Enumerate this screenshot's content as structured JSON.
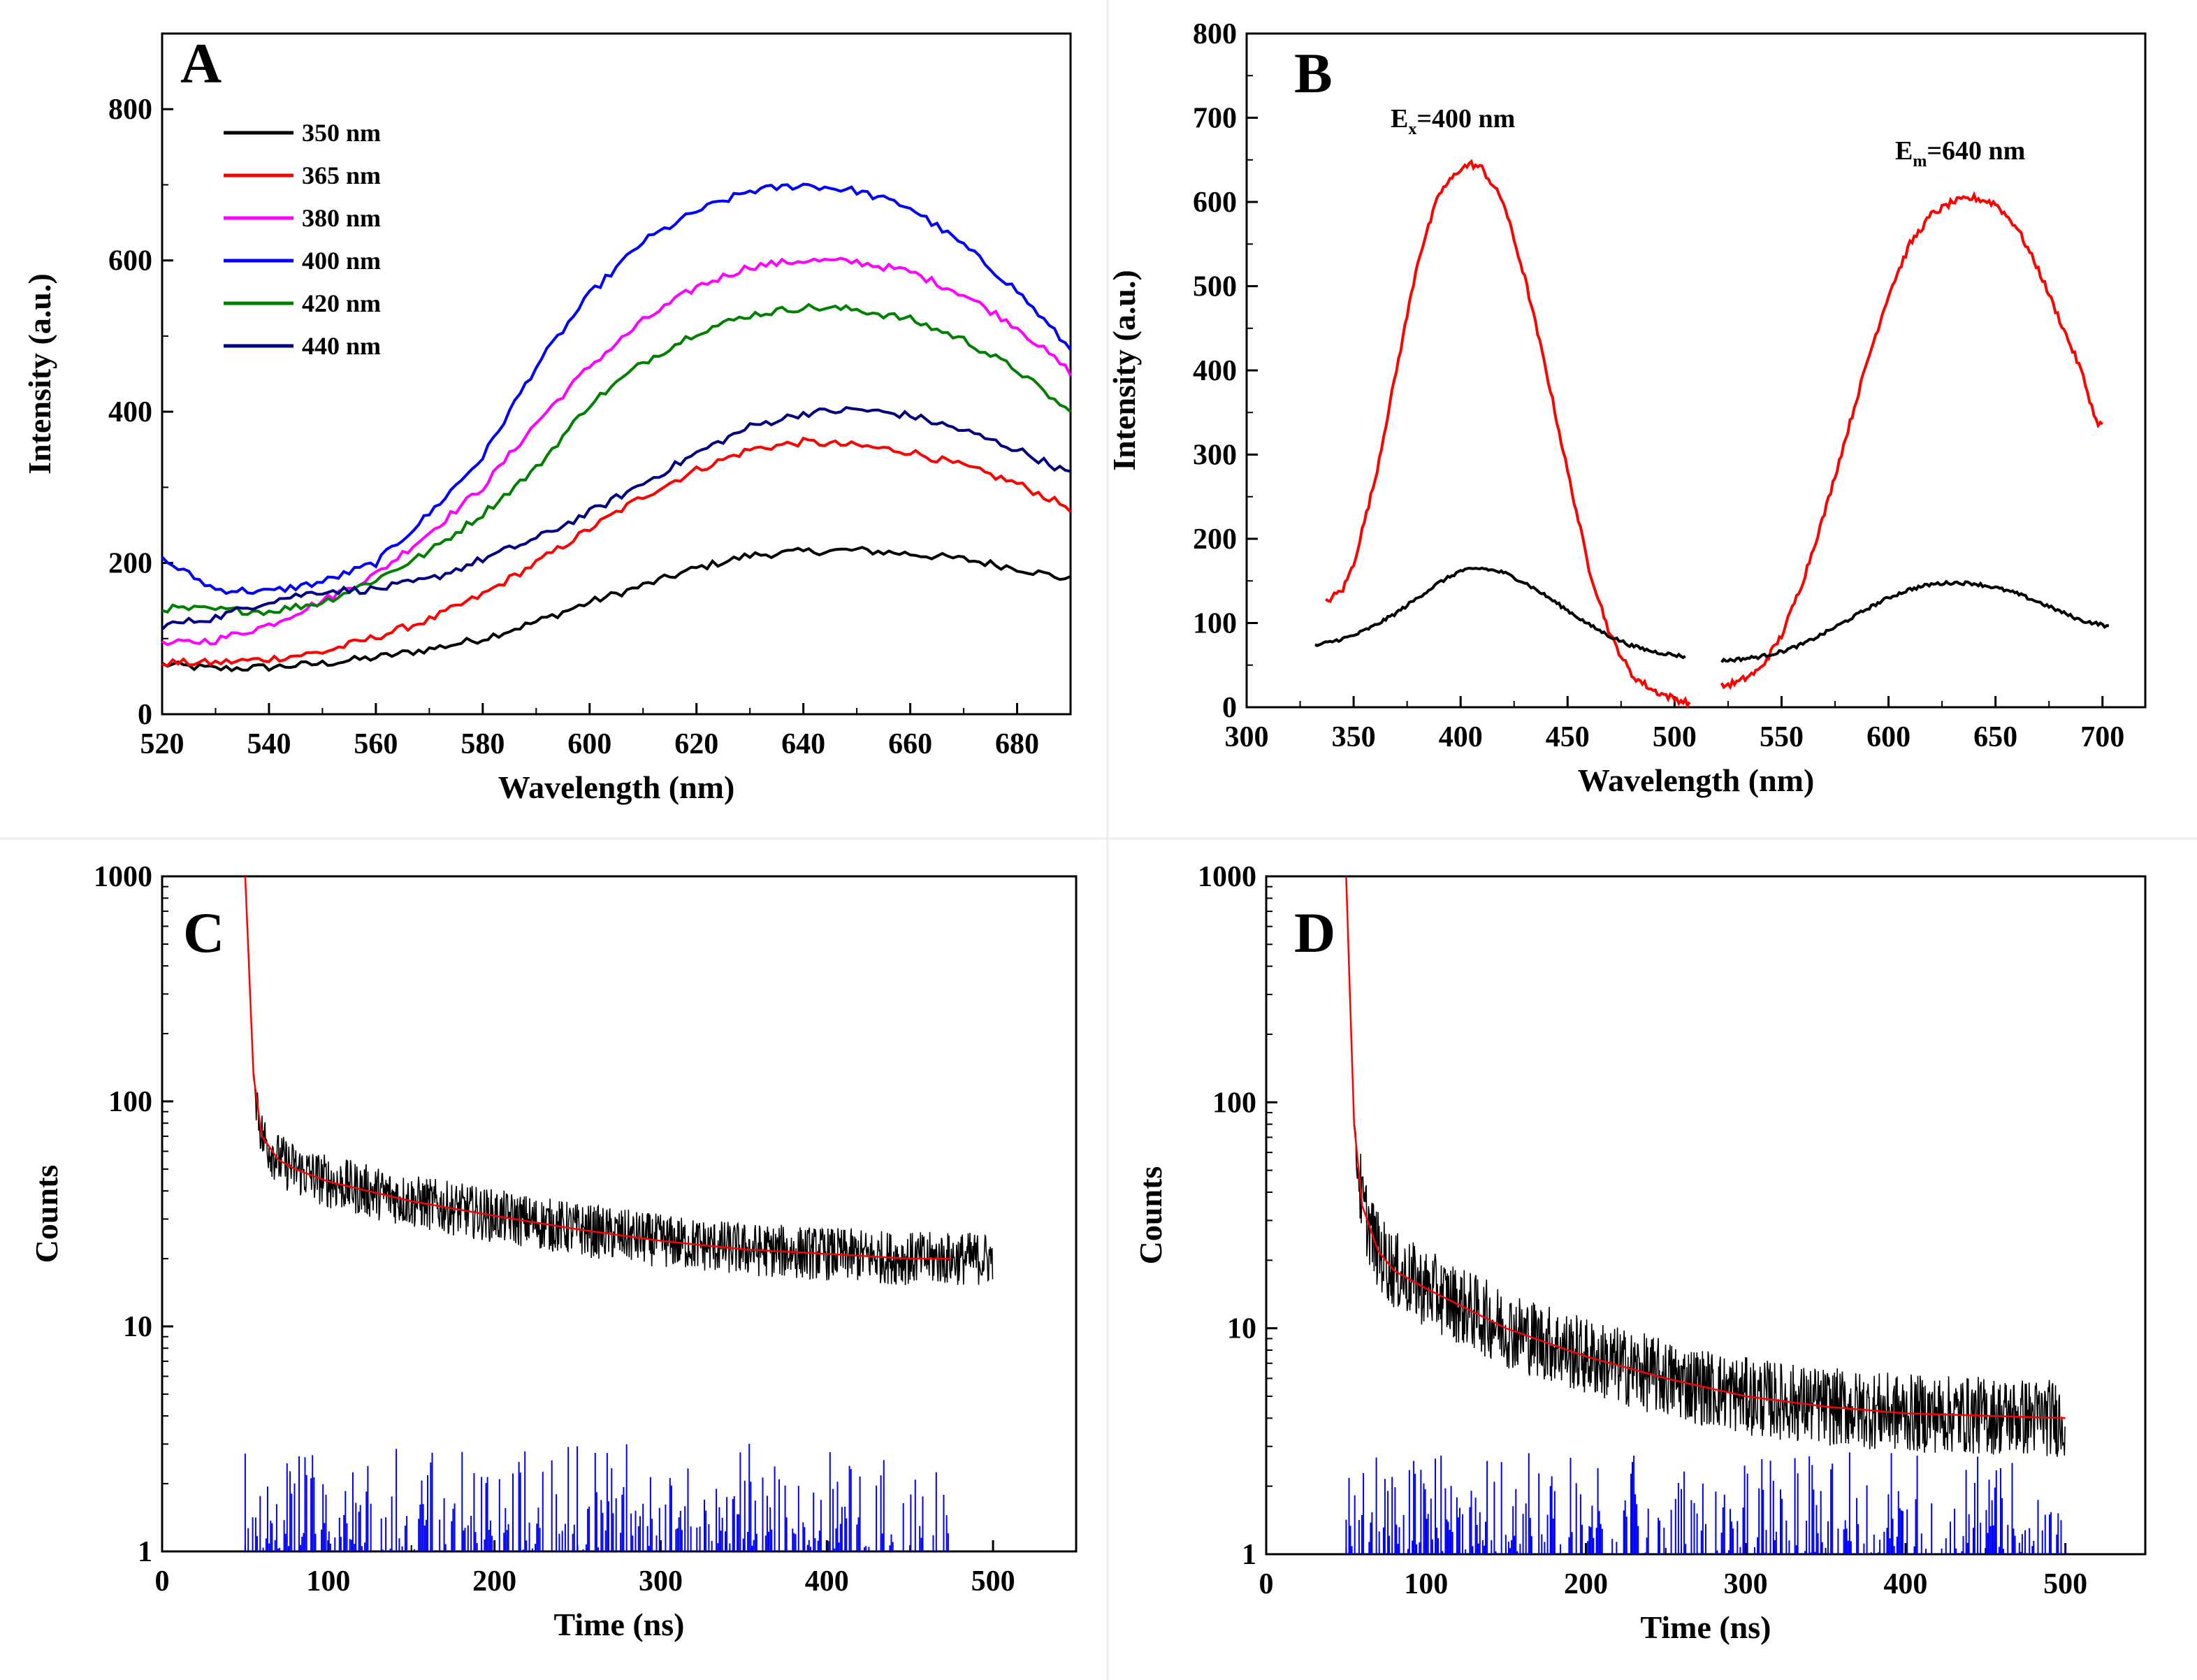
{
  "figure": {
    "colors": {
      "black": "#000000",
      "red": "#ff0000",
      "magenta": "#ff00ff",
      "blue": "#0000ff",
      "green": "#008000",
      "navy": "#000080"
    }
  },
  "chart_data": [
    {
      "panel": "A",
      "type": "line",
      "title": "",
      "xlabel": "Wavelength (nm)",
      "ylabel": "Intensity (a.u.)",
      "xlim": [
        520,
        690
      ],
      "ylim": [
        0,
        900
      ],
      "x_ticks": [
        520,
        540,
        560,
        580,
        600,
        620,
        640,
        660,
        680
      ],
      "y_ticks": [
        0,
        200,
        400,
        600,
        800
      ],
      "legend_position": "top-left",
      "x": [
        520,
        530,
        540,
        550,
        560,
        570,
        580,
        590,
        600,
        610,
        620,
        630,
        640,
        650,
        660,
        670,
        680,
        690
      ],
      "series": [
        {
          "name": "350 nm",
          "color": "#000000",
          "values": [
            66,
            60,
            62,
            67,
            75,
            86,
            100,
            122,
            148,
            170,
            193,
            210,
            215,
            217,
            212,
            205,
            193,
            178
          ]
        },
        {
          "name": "365 nm",
          "color": "#ff0000",
          "values": [
            68,
            68,
            73,
            82,
            102,
            125,
            158,
            200,
            245,
            288,
            323,
            350,
            360,
            355,
            347,
            328,
            305,
            272
          ]
        },
        {
          "name": "380 nm",
          "color": "#ff00ff",
          "values": [
            92,
            98,
            118,
            150,
            185,
            240,
            300,
            385,
            460,
            520,
            565,
            592,
            600,
            598,
            585,
            555,
            512,
            452
          ]
        },
        {
          "name": "400 nm",
          "color": "#0000ff",
          "values": [
            205,
            165,
            162,
            175,
            200,
            265,
            340,
            460,
            555,
            625,
            665,
            692,
            700,
            692,
            670,
            620,
            560,
            482
          ]
        },
        {
          "name": "420 nm",
          "color": "#008000",
          "values": [
            140,
            138,
            136,
            148,
            178,
            215,
            265,
            325,
            410,
            465,
            505,
            528,
            538,
            535,
            522,
            495,
            455,
            398
          ]
        },
        {
          "name": "440 nm",
          "color": "#000080",
          "values": [
            117,
            128,
            150,
            163,
            165,
            178,
            205,
            232,
            267,
            305,
            345,
            380,
            398,
            403,
            395,
            375,
            350,
            318
          ]
        }
      ]
    },
    {
      "panel": "B",
      "type": "line",
      "title": "",
      "xlabel": "Wavelength (nm)",
      "ylabel": "Intensity (a.u.)",
      "xlim": [
        300,
        720
      ],
      "ylim": [
        0,
        800
      ],
      "x_ticks": [
        300,
        350,
        400,
        450,
        500,
        550,
        600,
        650,
        700
      ],
      "y_ticks": [
        0,
        100,
        200,
        300,
        400,
        500,
        600,
        700,
        800
      ],
      "annotations": [
        {
          "base": "E",
          "sub": "x",
          "rest": "=400 nm"
        },
        {
          "base": "E",
          "sub": "m",
          "rest": "=640 nm"
        }
      ],
      "series": [
        {
          "name": "excitation (red)",
          "color": "#ff0000",
          "x": [
            337,
            345,
            350,
            360,
            370,
            380,
            390,
            400,
            405,
            410,
            420,
            430,
            440,
            450,
            460,
            470,
            480,
            490,
            500,
            507
          ],
          "values": [
            125,
            140,
            170,
            270,
            400,
            530,
            610,
            640,
            645,
            640,
            600,
            510,
            400,
            280,
            165,
            85,
            38,
            20,
            10,
            5
          ]
        },
        {
          "name": "emission (red)",
          "color": "#ff0000",
          "x": [
            522,
            530,
            540,
            550,
            560,
            570,
            580,
            590,
            600,
            610,
            620,
            630,
            640,
            650,
            660,
            670,
            680,
            690,
            697,
            700
          ],
          "values": [
            25,
            30,
            45,
            85,
            150,
            230,
            320,
            410,
            490,
            550,
            585,
            600,
            605,
            598,
            570,
            520,
            460,
            400,
            340,
            335
          ]
        },
        {
          "name": "excitation (black)",
          "color": "#000000",
          "x": [
            332,
            340,
            350,
            360,
            370,
            380,
            390,
            400,
            410,
            420,
            430,
            440,
            450,
            460,
            470,
            480,
            490,
            500,
            505
          ],
          "values": [
            73,
            78,
            85,
            97,
            112,
            130,
            148,
            162,
            165,
            160,
            148,
            132,
            115,
            98,
            84,
            73,
            66,
            62,
            60
          ]
        },
        {
          "name": "emission (black)",
          "color": "#000000",
          "x": [
            522,
            530,
            540,
            550,
            560,
            570,
            580,
            590,
            600,
            610,
            620,
            630,
            640,
            650,
            660,
            670,
            680,
            690,
            700,
            703
          ],
          "values": [
            55,
            57,
            60,
            66,
            75,
            88,
            102,
            117,
            130,
            140,
            146,
            148,
            147,
            142,
            135,
            125,
            114,
            103,
            98,
            95
          ]
        }
      ]
    },
    {
      "panel": "C",
      "type": "line",
      "title": "",
      "xlabel": "Time (ns)",
      "ylabel": "Counts",
      "yscale": "log",
      "xlim": [
        0,
        550
      ],
      "ylim": [
        1,
        1000
      ],
      "x_ticks": [
        0,
        100,
        200,
        300,
        400,
        500
      ],
      "y_ticks": [
        1,
        10,
        100,
        1000
      ],
      "decay_start_ns": 50,
      "decay_end_ns": 500,
      "fit_end_ns": 475,
      "decay_curve": {
        "x": [
          50,
          55,
          60,
          70,
          80,
          100,
          150,
          200,
          250,
          300,
          350,
          400,
          450,
          475,
          500
        ],
        "values": [
          1000,
          130,
          70,
          55,
          50,
          44,
          36,
          31,
          27,
          24,
          22,
          21,
          20,
          20,
          20
        ]
      },
      "series": [
        {
          "name": "decay data",
          "color": "#000000"
        },
        {
          "name": "fit",
          "color": "#ff0000"
        },
        {
          "name": "residuals",
          "color": "#0000ff"
        }
      ]
    },
    {
      "panel": "D",
      "type": "line",
      "title": "",
      "xlabel": "Time (ns)",
      "ylabel": "Counts",
      "yscale": "log",
      "xlim": [
        0,
        550
      ],
      "ylim": [
        1,
        1000
      ],
      "x_ticks": [
        0,
        100,
        200,
        300,
        400,
        500
      ],
      "y_ticks": [
        1,
        10,
        100,
        1000
      ],
      "decay_start_ns": 50,
      "decay_end_ns": 500,
      "fit_end_ns": 500,
      "decay_curve": {
        "x": [
          50,
          55,
          60,
          70,
          80,
          100,
          150,
          200,
          250,
          300,
          350,
          400,
          450,
          500
        ],
        "values": [
          1000,
          80,
          35,
          22,
          18,
          15,
          10,
          7.5,
          6,
          5,
          4.5,
          4.2,
          4.1,
          4
        ]
      },
      "series": [
        {
          "name": "decay data",
          "color": "#000000"
        },
        {
          "name": "fit",
          "color": "#ff0000"
        },
        {
          "name": "residuals",
          "color": "#0000ff"
        }
      ]
    }
  ]
}
